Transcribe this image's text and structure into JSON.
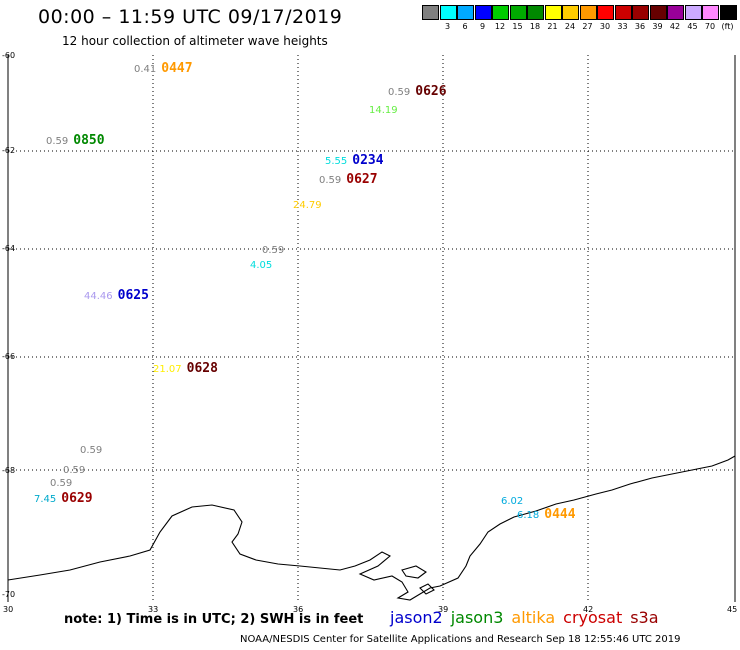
{
  "header": {
    "title": "00:00 – 11:59 UTC 09/17/2019",
    "subtitle": "12 hour collection of altimeter wave heights"
  },
  "colorbar": {
    "swatches": [
      {
        "color": "#808080",
        "label": ""
      },
      {
        "color": "#00ffff",
        "label": "3"
      },
      {
        "color": "#00aaff",
        "label": "6"
      },
      {
        "color": "#0000ff",
        "label": "9"
      },
      {
        "color": "#00cc00",
        "label": "12"
      },
      {
        "color": "#00aa00",
        "label": "15"
      },
      {
        "color": "#008800",
        "label": "18"
      },
      {
        "color": "#ffff00",
        "label": "21"
      },
      {
        "color": "#ffcc00",
        "label": "24"
      },
      {
        "color": "#ff9900",
        "label": "27"
      },
      {
        "color": "#ff0000",
        "label": "30"
      },
      {
        "color": "#cc0000",
        "label": "33"
      },
      {
        "color": "#990000",
        "label": "36"
      },
      {
        "color": "#660000",
        "label": "39"
      },
      {
        "color": "#990099",
        "label": "42"
      },
      {
        "color": "#ccaaff",
        "label": "45"
      },
      {
        "color": "#ff88ff",
        "label": "70"
      },
      {
        "color": "#000000",
        "label": "(ft)"
      }
    ]
  },
  "axes": {
    "lat_labels": [
      "-60",
      "-62",
      "-64",
      "-66",
      "-68",
      "-70"
    ],
    "lon_labels": [
      "30",
      "33",
      "36",
      "39",
      "42",
      "45"
    ]
  },
  "observations": [
    {
      "value": "0.41",
      "value_color": "#808080",
      "time": "0447",
      "time_color": "#ff9900"
    },
    {
      "value": "0.59",
      "value_color": "#808080",
      "time": "0626",
      "time_color": "#660000"
    },
    {
      "value": "14.19",
      "value_color": "#66ee44",
      "time": "",
      "time_color": "#000000"
    },
    {
      "value": "0.59",
      "value_color": "#808080",
      "time": "0850",
      "time_color": "#008800"
    },
    {
      "value": "5.55",
      "value_color": "#00dddd",
      "time": "0234",
      "time_color": "#0000cc"
    },
    {
      "value": "0.59",
      "value_color": "#808080",
      "time": "0627",
      "time_color": "#990000"
    },
    {
      "value": "24.79",
      "value_color": "#ffcc00",
      "time": "",
      "time_color": "#000000"
    },
    {
      "value": "0.59",
      "value_color": "#808080",
      "time": "",
      "time_color": "#000000"
    },
    {
      "value": "4.05",
      "value_color": "#00dddd",
      "time": "",
      "time_color": "#000000"
    },
    {
      "value": "44.46",
      "value_color": "#aa99ee",
      "time": "0625",
      "time_color": "#0000cc"
    },
    {
      "value": "21.07",
      "value_color": "#ffee00",
      "time": "0628",
      "time_color": "#660000"
    },
    {
      "value": "0.59",
      "value_color": "#808080",
      "time": "",
      "time_color": "#000000"
    },
    {
      "value": "0.59",
      "value_color": "#808080",
      "time": "",
      "time_color": "#000000"
    },
    {
      "value": "0.59",
      "value_color": "#808080",
      "time": "",
      "time_color": "#000000"
    },
    {
      "value": "7.45",
      "value_color": "#00aacc",
      "time": "0629",
      "time_color": "#990000"
    },
    {
      "value": "6.02",
      "value_color": "#00aadd",
      "time": "",
      "time_color": "#000000"
    },
    {
      "value": "6.18",
      "value_color": "#00aadd",
      "time": "0444",
      "time_color": "#ff9900"
    }
  ],
  "footer": {
    "note": "note: 1) Time is in UTC; 2) SWH is in feet",
    "legend": [
      {
        "name": "jason2",
        "color": "#0000cc"
      },
      {
        "name": "jason3",
        "color": "#008800"
      },
      {
        "name": "altika",
        "color": "#ff9900"
      },
      {
        "name": "cryosat",
        "color": "#cc0000"
      },
      {
        "name": "s3a",
        "color": "#990000"
      }
    ],
    "credit": "NOAA/NESDIS Center for Satellite Applications and Research    Sep 18 12:55:46 UTC 2019"
  }
}
